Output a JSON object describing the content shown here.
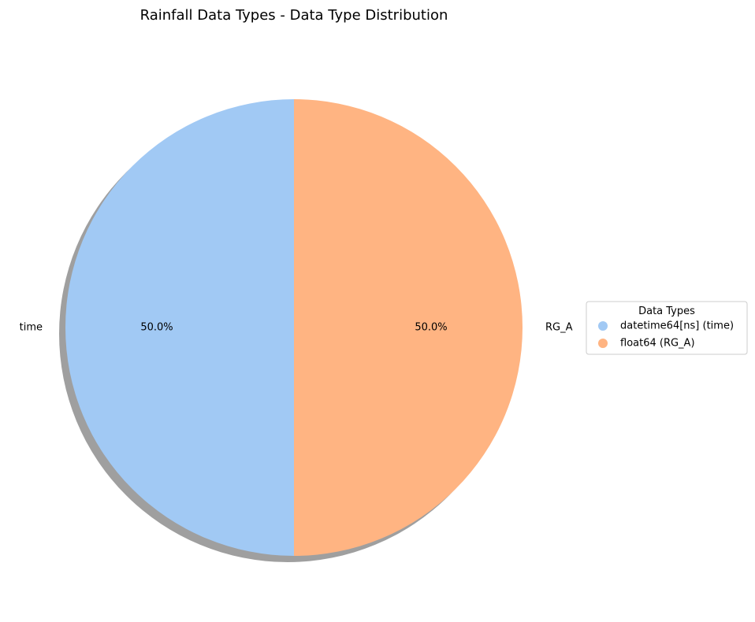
{
  "chart_data": {
    "type": "pie",
    "title": "Rainfall Data Types - Data Type Distribution",
    "slices": [
      {
        "label": "time",
        "value": 50.0,
        "pct_label": "50.0%",
        "color": "#a1c9f4"
      },
      {
        "label": "RG_A",
        "value": 50.0,
        "pct_label": "50.0%",
        "color": "#ffb482"
      }
    ],
    "shadow": true,
    "legend": {
      "title": "Data Types",
      "placement": "center-right",
      "entries": [
        {
          "label": "datetime64[ns] (time)",
          "color": "#a1c9f4"
        },
        {
          "label": "float64 (RG_A)",
          "color": "#ffb482"
        }
      ]
    }
  }
}
